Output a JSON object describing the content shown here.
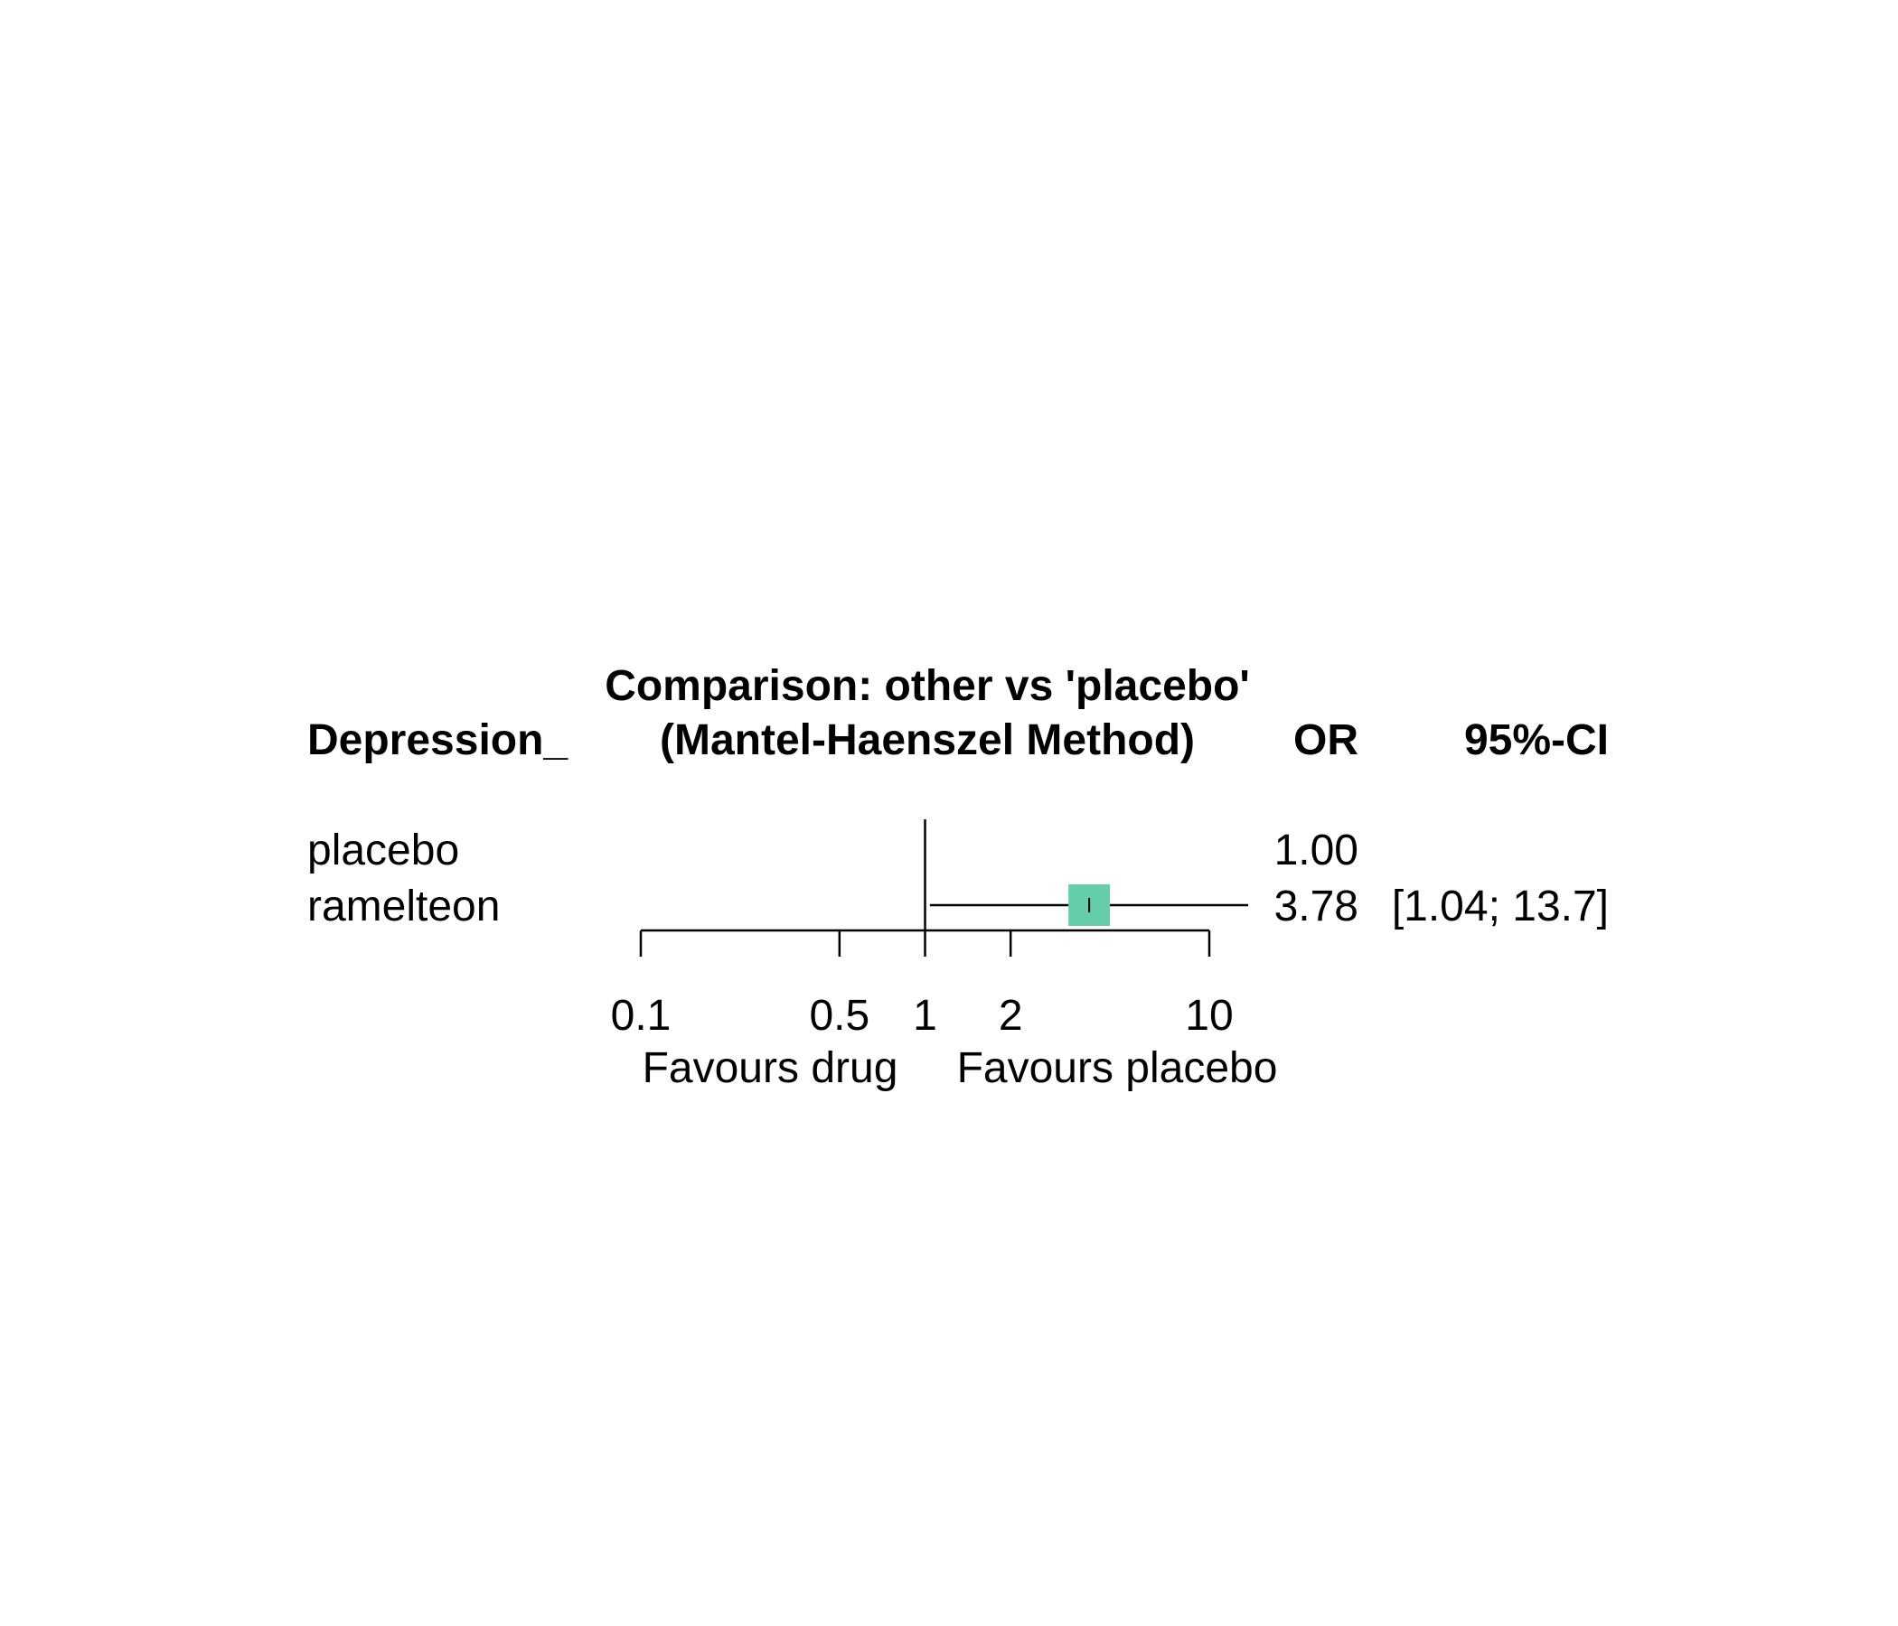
{
  "chart_data": {
    "type": "forest",
    "title": "Comparison: other vs 'placebo'",
    "subtitle": "(Mantel-Haenszel Method)",
    "columns": {
      "group": "Depression_",
      "estimate": "OR",
      "ci": "95%-CI"
    },
    "rows": [
      {
        "label": "placebo",
        "or_text": "1.00",
        "ci_text": "",
        "or": 1.0,
        "lower": null,
        "upper": null
      },
      {
        "label": "ramelteon",
        "or_text": "3.78",
        "ci_text": "[1.04; 13.7]",
        "or": 3.78,
        "lower": 1.04,
        "upper": 13.7
      }
    ],
    "x_scale": "log",
    "x_ticks": [
      0.1,
      0.5,
      1,
      2,
      10
    ],
    "x_tick_labels": [
      "0.1",
      "0.5",
      "1",
      "2",
      "10"
    ],
    "xlim": [
      0.1,
      10
    ],
    "reference_line": 1,
    "label_left": "Favours drug",
    "label_right": "Favours placebo",
    "marker_color": "#66CDAA",
    "line_color": "#000000"
  }
}
